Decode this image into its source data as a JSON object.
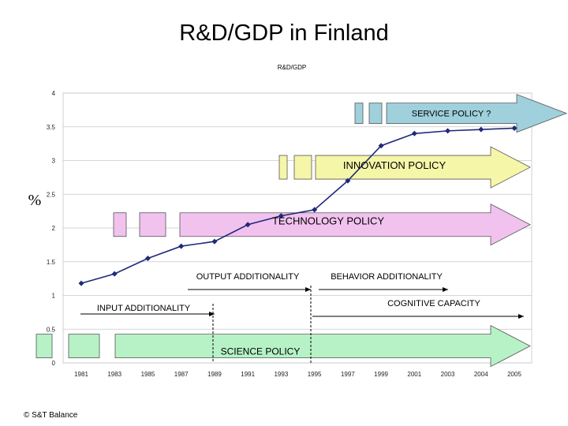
{
  "slide_title": "R&D/GDP in Finland",
  "footer": "© S&T Balance",
  "colors": {
    "line": "#1f2a78",
    "plot_bg": "#ffffff",
    "grid": "#c8c8c8",
    "service_arrow": "#9fd0dc",
    "innovation_arrow": "#f6f6a8",
    "technology_arrow": "#f2c2ef",
    "science_arrow": "#b6f2c6"
  },
  "chart_data": {
    "type": "line",
    "title": "R&D/GDP",
    "ylabel": "%",
    "xlabel": "",
    "ylim": [
      0,
      4
    ],
    "yticks": [
      "0",
      "0.5",
      "1",
      "1.5",
      "2",
      "2.5",
      "3",
      "3.5",
      "4"
    ],
    "categories": [
      "1981",
      "1983",
      "1985",
      "1987",
      "1989",
      "1991",
      "1993",
      "1995",
      "1997",
      "1999",
      "2001",
      "2003",
      "2004",
      "2005"
    ],
    "series": [
      {
        "values": [
          1.18,
          1.32,
          1.55,
          1.73,
          1.8,
          2.05,
          2.18,
          2.27,
          2.7,
          3.22,
          3.4,
          3.44,
          3.46,
          3.48
        ]
      }
    ],
    "grid": true,
    "policy_arrows": [
      {
        "label": "SERVICE POLICY ?",
        "level": 3.7,
        "color_key": "service_arrow"
      },
      {
        "label": "INNOVATION POLICY",
        "level": 2.9,
        "color_key": "innovation_arrow"
      },
      {
        "label": "TECHNOLOGY POLICY",
        "level": 2.05,
        "color_key": "technology_arrow"
      },
      {
        "label": "SCIENCE POLICY",
        "level": 0.25,
        "color_key": "science_arrow"
      }
    ],
    "annotations": [
      {
        "label": "INPUT ADDITIONALITY"
      },
      {
        "label": "OUTPUT ADDITIONALITY"
      },
      {
        "label": "BEHAVIOR ADDITIONALITY"
      },
      {
        "label": "COGNITIVE CAPACITY"
      }
    ]
  }
}
